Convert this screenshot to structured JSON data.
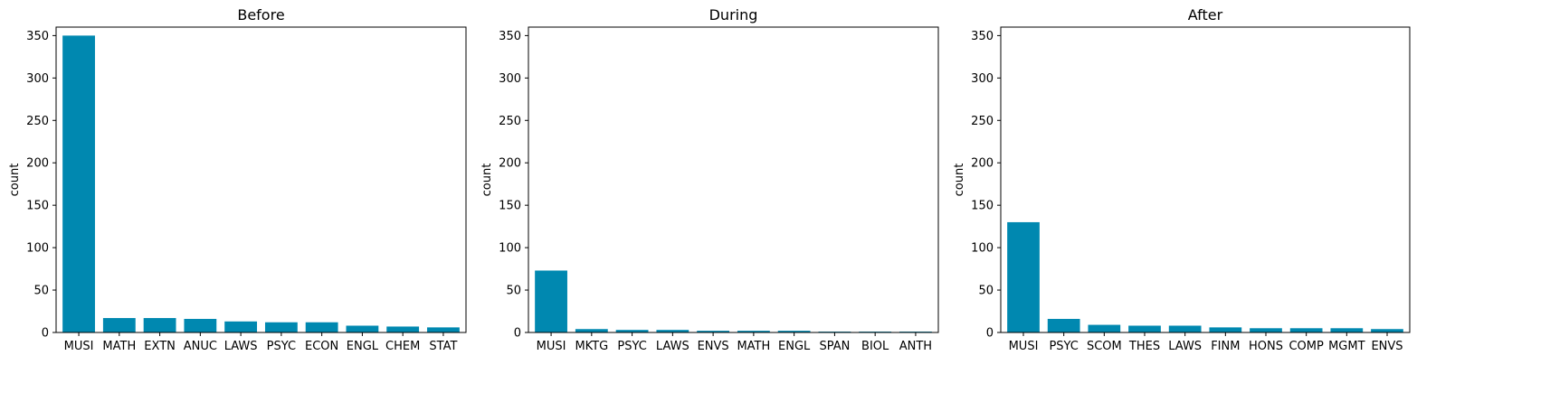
{
  "chart_data": [
    {
      "type": "bar",
      "title": "Before",
      "ylabel": "count",
      "xlabel": "",
      "ylim": [
        0,
        360
      ],
      "yticks": [
        0,
        50,
        100,
        150,
        200,
        250,
        300,
        350
      ],
      "categories": [
        "MUSI",
        "MATH",
        "EXTN",
        "ANUC",
        "LAWS",
        "PSYC",
        "ECON",
        "ENGL",
        "CHEM",
        "STAT"
      ],
      "values": [
        350,
        17,
        17,
        16,
        13,
        12,
        12,
        8,
        7,
        6
      ],
      "bar_color": "#0088b0",
      "grid": false
    },
    {
      "type": "bar",
      "title": "During",
      "ylabel": "count",
      "xlabel": "",
      "ylim": [
        0,
        360
      ],
      "yticks": [
        0,
        50,
        100,
        150,
        200,
        250,
        300,
        350
      ],
      "categories": [
        "MUSI",
        "MKTG",
        "PSYC",
        "LAWS",
        "ENVS",
        "MATH",
        "ENGL",
        "SPAN",
        "BIOL",
        "ANTH"
      ],
      "values": [
        73,
        4,
        3,
        3,
        2,
        2,
        2,
        1,
        1,
        1
      ],
      "bar_color": "#0088b0",
      "grid": false
    },
    {
      "type": "bar",
      "title": "After",
      "ylabel": "count",
      "xlabel": "",
      "ylim": [
        0,
        360
      ],
      "yticks": [
        0,
        50,
        100,
        150,
        200,
        250,
        300,
        350
      ],
      "categories": [
        "MUSI",
        "PSYC",
        "SCOM",
        "THES",
        "LAWS",
        "FINM",
        "HONS",
        "COMP",
        "MGMT",
        "ENVS"
      ],
      "values": [
        130,
        16,
        9,
        8,
        8,
        6,
        5,
        5,
        5,
        4
      ],
      "bar_color": "#0088b0",
      "grid": false
    }
  ]
}
